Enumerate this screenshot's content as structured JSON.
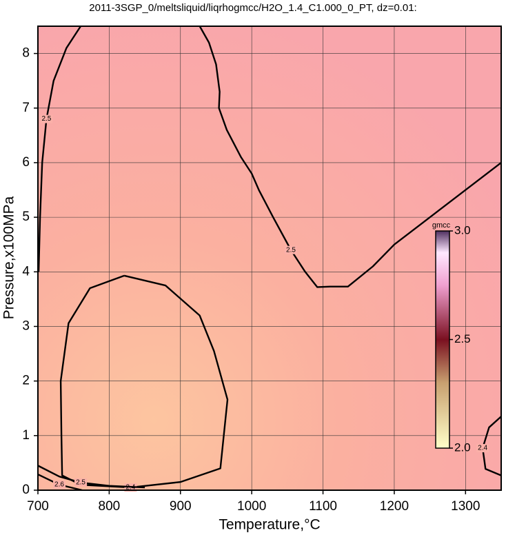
{
  "chart_data": {
    "type": "contour",
    "title": "2011-3SGP_0/meltsliquid/liqrhogmcc/H2O_1.4_C1.000_0_PT, dz=0.01:",
    "xlabel": "Temperature,°C",
    "ylabel": "Pressure,x100MPa",
    "xlim": [
      700,
      1350
    ],
    "ylim": [
      0,
      8.5
    ],
    "xticks": [
      700,
      800,
      900,
      1000,
      1100,
      1200,
      1300
    ],
    "yticks": [
      0,
      1,
      2,
      3,
      4,
      5,
      6,
      7,
      8
    ],
    "grid": true,
    "contours": [
      {
        "level": 2.5,
        "x": [
          701,
          703,
          706,
          712,
          722,
          740,
          760
        ],
        "y": [
          4,
          5,
          6,
          6.8,
          7.5,
          8.1,
          8.5
        ]
      },
      {
        "level": 2.5,
        "x": [
          927,
          940,
          950,
          955,
          954,
          965,
          985,
          1000,
          1010,
          1030,
          1055,
          1075,
          1092,
          1110,
          1135,
          1170,
          1200,
          1240,
          1290,
          1350
        ],
        "y": [
          8.5,
          8.2,
          7.8,
          7.3,
          7.0,
          6.6,
          6.1,
          5.8,
          5.5,
          5.0,
          4.4,
          4.0,
          3.72,
          3.73,
          3.73,
          4.1,
          4.5,
          4.9,
          5.4,
          6.0
        ]
      },
      {
        "level": 2.4,
        "x": [
          821,
          773,
          743,
          732,
          733,
          734,
          760,
          830,
          900,
          956,
          966,
          947,
          927,
          879,
          821
        ],
        "y": [
          3.93,
          3.7,
          3.06,
          2.0,
          1.0,
          0.27,
          0.1,
          0.05,
          0.15,
          0.4,
          1.66,
          2.55,
          3.2,
          3.75,
          3.93
        ]
      },
      {
        "level": 2.4,
        "x": [
          1350,
          1333,
          1324,
          1328,
          1350
        ],
        "y": [
          1.35,
          1.15,
          0.77,
          0.39,
          0.27
        ]
      },
      {
        "level": 2.5,
        "x": [
          700,
          730,
          760,
          800,
          850
        ],
        "y": [
          0.45,
          0.25,
          0.14,
          0.08,
          0.05
        ]
      },
      {
        "level": 2.6,
        "x": [
          700,
          730,
          762
        ],
        "y": [
          0.29,
          0.1,
          0
        ]
      }
    ],
    "colorbar": {
      "title": "gmcc",
      "clim": [
        2,
        3
      ],
      "ticks": [
        {
          "value": 2,
          "label": "2.0"
        },
        2.5,
        {
          "value": 3,
          "label": "3.0"
        }
      ]
    }
  }
}
